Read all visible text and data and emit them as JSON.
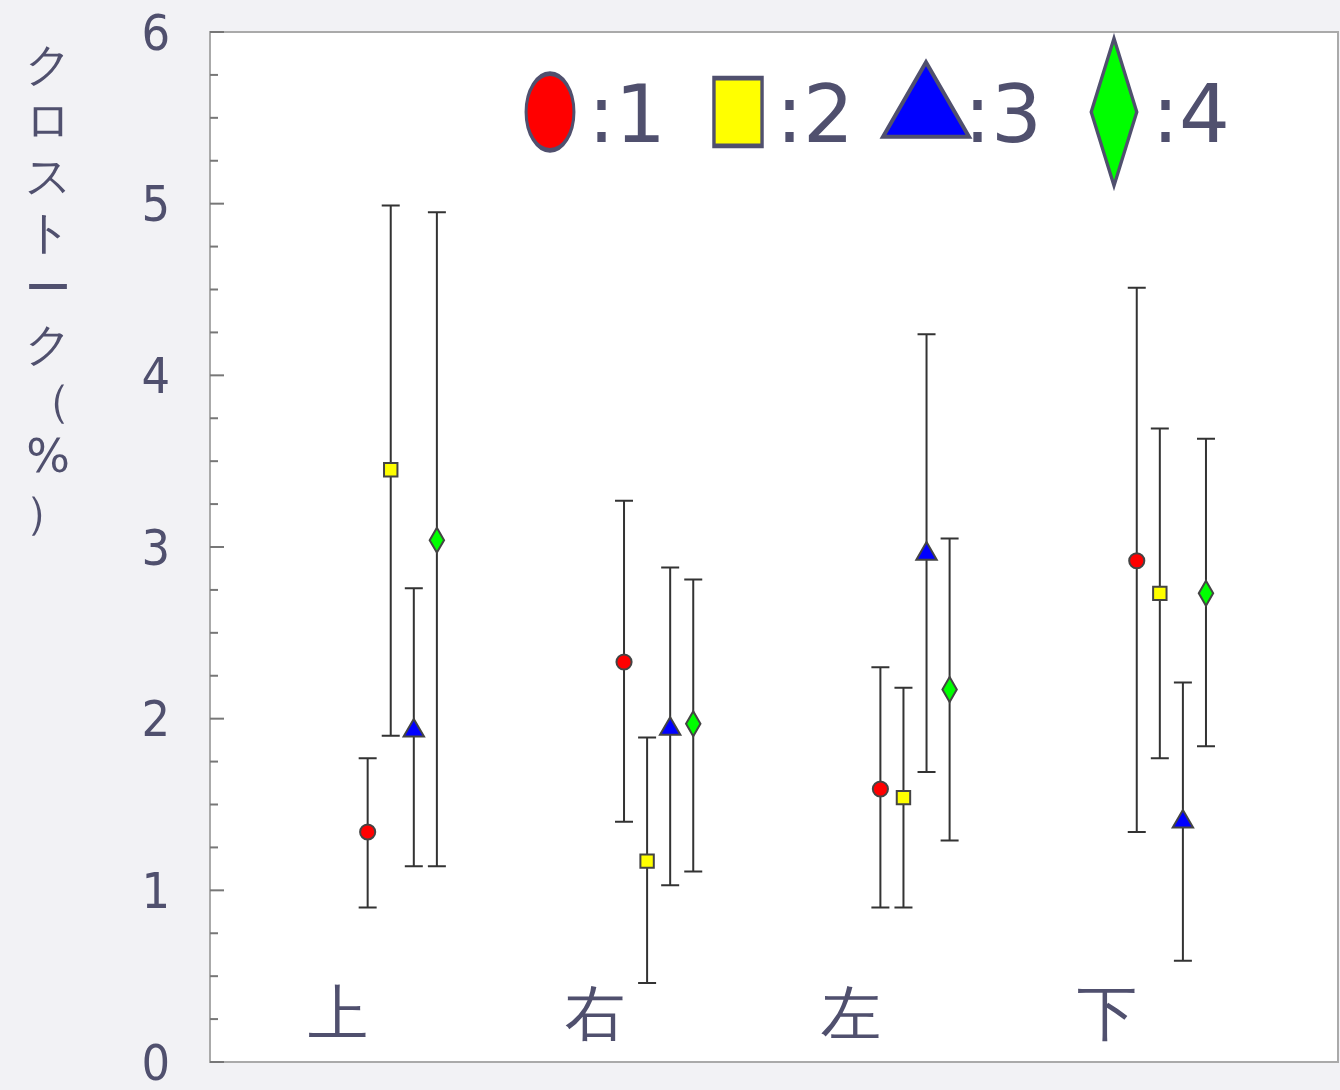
{
  "chart_data": {
    "type": "scatter",
    "ylabel": "クロストーク（%）",
    "categories": [
      "上",
      "右",
      "左",
      "下"
    ],
    "ylim": [
      0,
      6
    ],
    "yticks": [
      0,
      {
        "value": 0.25,
        "label": null
      },
      {
        "value": 0.5,
        "label": null
      },
      {
        "value": 0.75,
        "label": null
      },
      1,
      {
        "value": 1.25,
        "label": null
      },
      {
        "value": 1.5,
        "label": null
      },
      {
        "value": 1.75,
        "label": null
      },
      2,
      {
        "value": 2.25,
        "label": null
      },
      {
        "value": 2.5,
        "label": null
      },
      {
        "value": 2.75,
        "label": null
      },
      3,
      {
        "value": 3.25,
        "label": null
      },
      {
        "value": 3.5,
        "label": null
      },
      {
        "value": 3.75,
        "label": null
      },
      4,
      {
        "value": 4.25,
        "label": null
      },
      {
        "value": 4.5,
        "label": null
      },
      {
        "value": 4.75,
        "label": null
      },
      5,
      {
        "value": 5.25,
        "label": null
      },
      {
        "value": 5.5,
        "label": null
      },
      {
        "value": 5.75,
        "label": null
      },
      6
    ],
    "grid": false,
    "legend": "top right",
    "series": [
      {
        "name": ":1",
        "color": "#ff0000",
        "marker": "circle",
        "values": [
          1.34,
          2.33,
          1.59,
          2.92
        ],
        "errors": [
          [
            0.9,
            1.77
          ],
          [
            1.4,
            3.27
          ],
          [
            0.9,
            2.3
          ],
          [
            1.34,
            4.51
          ]
        ]
      },
      {
        "name": ":2",
        "color": "#ffff00",
        "marker": "square",
        "values": [
          3.45,
          1.17,
          1.54,
          2.73
        ],
        "errors": [
          [
            1.9,
            4.99
          ],
          [
            0.46,
            1.89
          ],
          [
            0.9,
            2.18
          ],
          [
            1.77,
            3.69
          ]
        ]
      },
      {
        "name": ":3",
        "color": "#0000ff",
        "marker": "triangle",
        "values": [
          1.93,
          1.94,
          2.96,
          1.4
        ],
        "errors": [
          [
            1.14,
            2.76
          ],
          [
            1.03,
            2.88
          ],
          [
            1.69,
            4.24
          ],
          [
            0.59,
            2.21
          ]
        ]
      },
      {
        "name": ":4",
        "color": "#00ff00",
        "marker": "diamond",
        "values": [
          3.04,
          1.97,
          2.17,
          2.73
        ],
        "errors": [
          [
            1.14,
            4.95
          ],
          [
            1.11,
            2.81
          ],
          [
            1.29,
            3.05
          ],
          [
            1.84,
            3.63
          ]
        ]
      }
    ]
  }
}
